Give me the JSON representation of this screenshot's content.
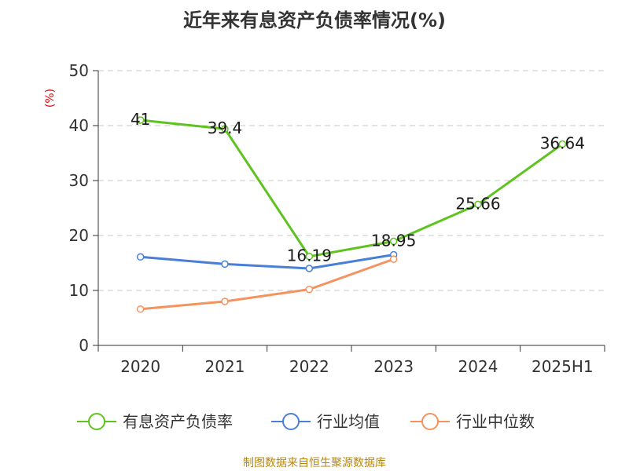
{
  "title": "近年来有息资产负债率情况(%)",
  "source": "制图数据来自恒生聚源数据库",
  "chart_data": {
    "type": "line",
    "title": "近年来有息资产负债率情况(%)",
    "ylabel": "(%)",
    "categories": [
      "2020",
      "2021",
      "2022",
      "2023",
      "2024",
      "2025H1"
    ],
    "ylim": [
      0,
      50
    ],
    "yticks": [
      0,
      10,
      20,
      30,
      40,
      50
    ],
    "grid": true,
    "legend_position": "bottom",
    "series": [
      {
        "name": "有息资产负债率",
        "color": "#5ec31f",
        "values": [
          41,
          39.4,
          16.19,
          18.95,
          25.66,
          36.64
        ],
        "labels": [
          "41",
          "39.4",
          "16.19",
          "18.95",
          "25.66",
          "36.64"
        ]
      },
      {
        "name": "行业均值",
        "color": "#4a7fd8",
        "values": [
          16.1,
          14.8,
          14.0,
          16.5,
          null,
          null
        ]
      },
      {
        "name": "行业中位数",
        "color": "#f5925e",
        "values": [
          6.6,
          8.0,
          10.2,
          15.7,
          null,
          null
        ]
      }
    ]
  }
}
